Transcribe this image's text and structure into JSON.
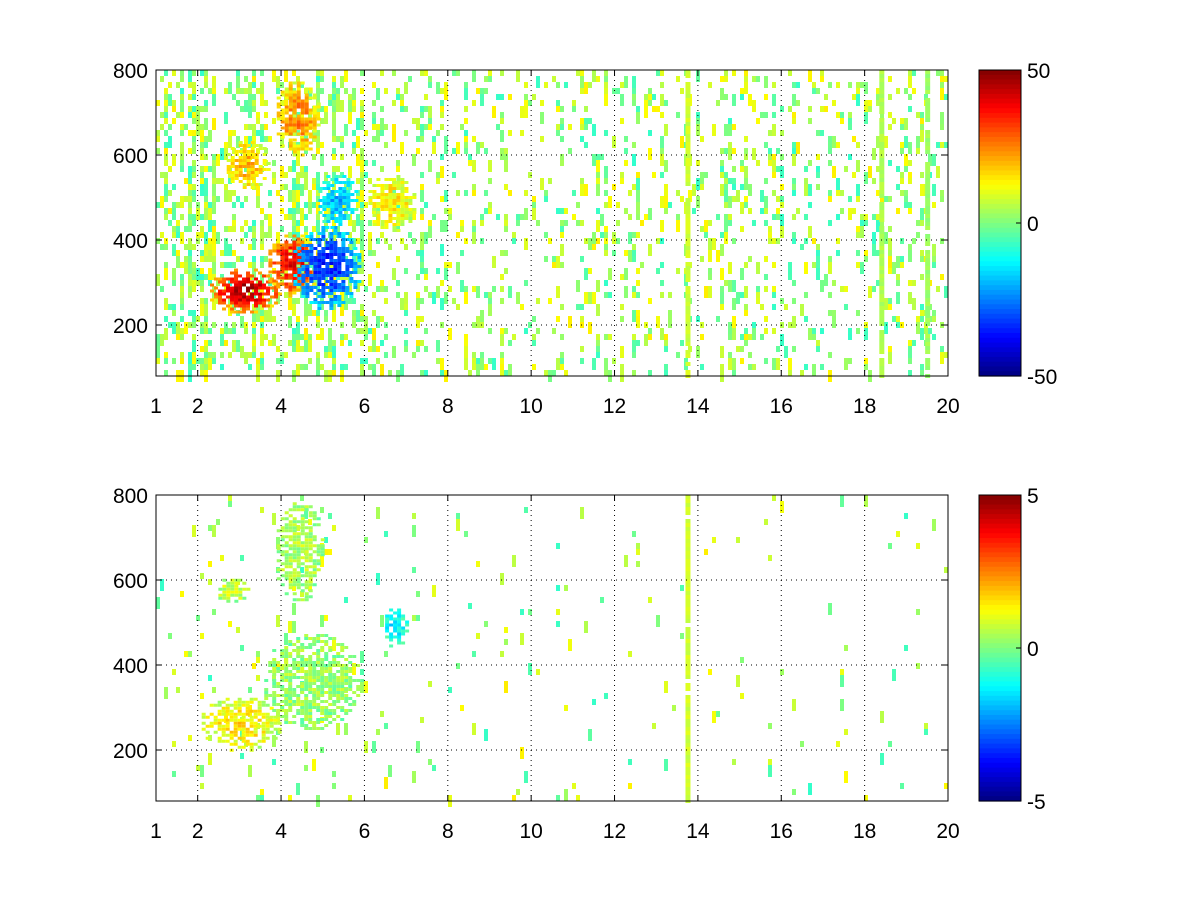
{
  "chart_data": [
    {
      "type": "heatmap",
      "title": "",
      "xlabel": "",
      "ylabel": "",
      "xlim": [
        1,
        20
      ],
      "ylim": [
        80,
        800
      ],
      "x_ticks": [
        1,
        2,
        4,
        6,
        8,
        10,
        12,
        14,
        16,
        18,
        20
      ],
      "y_ticks": [
        200,
        400,
        600,
        800
      ],
      "grid": true,
      "colormap": "jet",
      "colorbar": {
        "min": -50,
        "max": 50,
        "ticks": [
          50,
          0,
          -50
        ]
      },
      "features": [
        {
          "x": [
            2.2,
            4.0
          ],
          "y": [
            230,
            340
          ],
          "value": 45
        },
        {
          "x": [
            3.6,
            4.9
          ],
          "y": [
            270,
            420
          ],
          "value": 40
        },
        {
          "x": [
            4.2,
            5.9
          ],
          "y": [
            240,
            440
          ],
          "value": -35
        },
        {
          "x": [
            4.8,
            5.8
          ],
          "y": [
            430,
            560
          ],
          "value": -20
        },
        {
          "x": [
            2.6,
            3.7
          ],
          "y": [
            520,
            640
          ],
          "value": 20
        },
        {
          "x": [
            3.8,
            4.9
          ],
          "y": [
            600,
            780
          ],
          "value": 25
        },
        {
          "x": [
            6.0,
            7.2
          ],
          "y": [
            420,
            560
          ],
          "value": 15
        }
      ],
      "vertical_lines": [
        {
          "x": 13.75,
          "value": 8
        },
        {
          "x": 18.4,
          "value": 5
        },
        {
          "x": 19.5,
          "value": 3
        }
      ]
    },
    {
      "type": "heatmap",
      "title": "",
      "xlabel": "",
      "ylabel": "",
      "xlim": [
        1,
        20
      ],
      "ylim": [
        80,
        800
      ],
      "x_ticks": [
        1,
        2,
        4,
        6,
        8,
        10,
        12,
        14,
        16,
        18,
        20
      ],
      "y_ticks": [
        200,
        400,
        600,
        800
      ],
      "grid": true,
      "colormap": "jet",
      "colorbar": {
        "min": -5,
        "max": 5,
        "ticks": [
          5,
          0,
          -5
        ]
      },
      "features": [
        {
          "x": [
            2.0,
            4.0
          ],
          "y": [
            200,
            330
          ],
          "value": 1.5
        },
        {
          "x": [
            3.5,
            5.9
          ],
          "y": [
            250,
            480
          ],
          "value": 0.3
        },
        {
          "x": [
            3.8,
            5.0
          ],
          "y": [
            550,
            790
          ],
          "value": 0.5
        },
        {
          "x": [
            6.4,
            7.0
          ],
          "y": [
            440,
            540
          ],
          "value": -1.5
        },
        {
          "x": [
            2.4,
            3.2
          ],
          "y": [
            550,
            610
          ],
          "value": 0.8
        }
      ],
      "vertical_lines": [
        {
          "x": 13.75,
          "value": 0.8
        }
      ]
    }
  ]
}
